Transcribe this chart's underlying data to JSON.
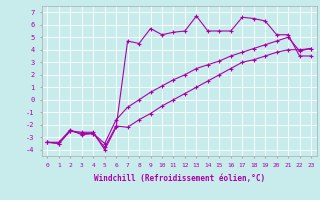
{
  "bg_color": "#c8ecec",
  "grid_color": "#ffffff",
  "line_color": "#aa00aa",
  "marker": "+",
  "xlabel": "Windchill (Refroidissement éolien,°C)",
  "ylim": [
    -4.5,
    7.5
  ],
  "xlim": [
    -0.5,
    23.5
  ],
  "yticks": [
    -4,
    -3,
    -2,
    -1,
    0,
    1,
    2,
    3,
    4,
    5,
    6,
    7
  ],
  "xticks": [
    0,
    1,
    2,
    3,
    4,
    5,
    6,
    7,
    8,
    9,
    10,
    11,
    12,
    13,
    14,
    15,
    16,
    17,
    18,
    19,
    20,
    21,
    22,
    23
  ],
  "line1_x": [
    0,
    1,
    2,
    3,
    4,
    5,
    6,
    7,
    8,
    9,
    10,
    11,
    12,
    13,
    14,
    15,
    16,
    17,
    18,
    19,
    20,
    21,
    22,
    23
  ],
  "line1_y": [
    -3.4,
    -3.5,
    -2.5,
    -2.6,
    -2.6,
    -4.0,
    -2.2,
    4.7,
    4.5,
    5.7,
    5.2,
    5.4,
    5.5,
    6.7,
    5.5,
    5.5,
    5.5,
    6.6,
    6.5,
    6.3,
    5.2,
    5.2,
    3.5,
    3.5
  ],
  "line2_x": [
    0,
    1,
    2,
    3,
    4,
    5,
    6,
    7,
    8,
    9,
    10,
    11,
    12,
    13,
    14,
    15,
    16,
    17,
    18,
    19,
    20,
    21,
    22,
    23
  ],
  "line2_y": [
    -3.4,
    -3.5,
    -2.5,
    -2.7,
    -2.7,
    -3.8,
    -2.1,
    -2.2,
    -1.6,
    -1.1,
    -0.5,
    0.0,
    0.5,
    1.0,
    1.5,
    2.0,
    2.5,
    3.0,
    3.2,
    3.5,
    3.8,
    4.0,
    4.0,
    4.1
  ],
  "line3_x": [
    0,
    1,
    2,
    3,
    4,
    5,
    6,
    7,
    8,
    9,
    10,
    11,
    12,
    13,
    14,
    15,
    16,
    17,
    18,
    19,
    20,
    21,
    22,
    23
  ],
  "line3_y": [
    -3.4,
    -3.4,
    -2.4,
    -2.8,
    -2.7,
    -3.5,
    -1.6,
    -0.6,
    0.0,
    0.6,
    1.1,
    1.6,
    2.0,
    2.5,
    2.8,
    3.1,
    3.5,
    3.8,
    4.1,
    4.4,
    4.7,
    5.0,
    3.9,
    4.1
  ]
}
